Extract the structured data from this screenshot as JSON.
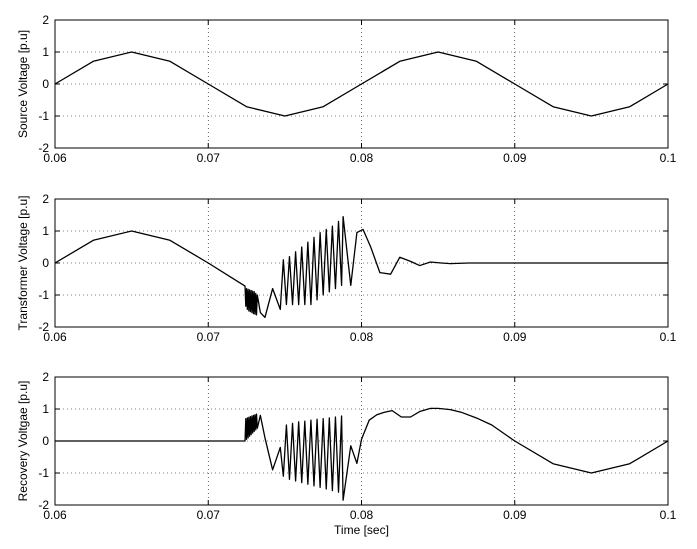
{
  "chart_data": [
    {
      "type": "line",
      "xlim": [
        0.06,
        0.1
      ],
      "ylim": [
        -2,
        2
      ],
      "xticks": [
        "0.06",
        "0.07",
        "0.08",
        "0.09",
        "0.1"
      ],
      "yticks": [
        "-2",
        "-1",
        "0",
        "1",
        "2"
      ],
      "xlabel": "",
      "ylabel": "Source Voltage [p.u]",
      "grid": true,
      "series": [
        {
          "x": [
            0.06,
            0.0625,
            0.065,
            0.0675,
            0.07,
            0.0725,
            0.075,
            0.0775,
            0.08,
            0.0825,
            0.085,
            0.0875,
            0.09,
            0.0925,
            0.095,
            0.0975,
            0.1
          ],
          "y": [
            0,
            0.71,
            1,
            0.71,
            0,
            -0.71,
            -1,
            -0.71,
            0,
            0.71,
            1,
            0.71,
            0,
            -0.71,
            -1,
            -0.71,
            0
          ]
        }
      ]
    },
    {
      "type": "line",
      "xlim": [
        0.06,
        0.1
      ],
      "ylim": [
        -2,
        2
      ],
      "xticks": [
        "0.06",
        "0.07",
        "0.08",
        "0.09",
        "0.1"
      ],
      "yticks": [
        "-2",
        "-1",
        "0",
        "1",
        "2"
      ],
      "xlabel": "",
      "ylabel": "Transformer Voltage [p.u]",
      "grid": true,
      "series": [
        {
          "x": [
            0.06,
            0.0625,
            0.065,
            0.0675,
            0.07,
            0.0715,
            0.0724,
            0.07245,
            0.0725,
            0.07255,
            0.0726,
            0.07265,
            0.0727,
            0.07275,
            0.0728,
            0.07285,
            0.0729,
            0.07295,
            0.073,
            0.07305,
            0.0731,
            0.07315,
            0.0732,
            0.0734,
            0.0737,
            0.0742,
            0.0747,
            0.0749,
            0.0751,
            0.0753,
            0.0755,
            0.0757,
            0.0759,
            0.0761,
            0.0763,
            0.0765,
            0.0767,
            0.0769,
            0.0771,
            0.0773,
            0.0775,
            0.0777,
            0.0779,
            0.0781,
            0.0783,
            0.0785,
            0.0787,
            0.0788,
            0.0793,
            0.0797,
            0.0801,
            0.0806,
            0.0812,
            0.0819,
            0.0825,
            0.0832,
            0.0838,
            0.0845,
            0.0852,
            0.0858,
            0.087,
            0.09,
            0.095,
            0.1
          ],
          "y": [
            0,
            0.71,
            1,
            0.71,
            0,
            -0.45,
            -0.72,
            -1.35,
            -0.8,
            -1.45,
            -0.82,
            -1.5,
            -0.84,
            -1.52,
            -0.86,
            -1.55,
            -0.88,
            -1.58,
            -0.9,
            -1.6,
            -0.95,
            -1.62,
            -1.0,
            -1.55,
            -1.7,
            -0.8,
            -1.45,
            0.1,
            -1.3,
            0.2,
            -1.3,
            0.35,
            -1.3,
            0.5,
            -1.3,
            0.65,
            -1.3,
            0.8,
            -1.15,
            0.95,
            -1.0,
            1.05,
            -0.9,
            1.15,
            -0.8,
            1.3,
            -0.7,
            1.45,
            -0.7,
            0.95,
            1.05,
            0.5,
            -0.3,
            -0.35,
            0.18,
            0.05,
            -0.08,
            0.03,
            0.0,
            -0.02,
            0.0,
            0.0,
            0.0,
            0.0
          ]
        }
      ]
    },
    {
      "type": "line",
      "xlim": [
        0.06,
        0.1
      ],
      "ylim": [
        -2,
        2
      ],
      "xticks": [
        "0.06",
        "0.07",
        "0.08",
        "0.09",
        "0.1"
      ],
      "yticks": [
        "-2",
        "-1",
        "0",
        "1",
        "2"
      ],
      "xlabel": "Time [sec]",
      "ylabel": "Recovery Voltgae [p.u]",
      "grid": true,
      "series": [
        {
          "x": [
            0.06,
            0.0724,
            0.07245,
            0.0725,
            0.07255,
            0.0726,
            0.07265,
            0.0727,
            0.07275,
            0.0728,
            0.07285,
            0.0729,
            0.07295,
            0.073,
            0.07305,
            0.0731,
            0.07315,
            0.0732,
            0.0734,
            0.0737,
            0.0742,
            0.0747,
            0.0749,
            0.0751,
            0.0753,
            0.0755,
            0.0757,
            0.0759,
            0.0761,
            0.0763,
            0.0765,
            0.0767,
            0.0769,
            0.0771,
            0.0773,
            0.0775,
            0.0777,
            0.0779,
            0.0781,
            0.0783,
            0.0785,
            0.0787,
            0.0788,
            0.0793,
            0.0797,
            0.08,
            0.0805,
            0.081,
            0.0815,
            0.082,
            0.0826,
            0.0832,
            0.0838,
            0.0845,
            0.085,
            0.0858,
            0.0865,
            0.0875,
            0.0885,
            0.09,
            0.0925,
            0.095,
            0.0975,
            0.1
          ],
          "y": [
            0,
            0,
            0.7,
            0.05,
            0.72,
            0.1,
            0.74,
            0.15,
            0.76,
            0.2,
            0.78,
            0.25,
            0.8,
            0.3,
            0.82,
            0.35,
            0.84,
            0.4,
            0.8,
            0.1,
            -0.9,
            -0.2,
            -1.1,
            0.5,
            -1.2,
            0.55,
            -1.25,
            0.6,
            -1.3,
            0.62,
            -1.35,
            0.65,
            -1.4,
            0.68,
            -1.45,
            0.7,
            -1.5,
            0.72,
            -1.55,
            0.75,
            -1.6,
            0.78,
            -1.85,
            -0.15,
            -0.7,
            0.05,
            0.65,
            0.82,
            0.9,
            0.95,
            0.75,
            0.75,
            0.92,
            1.02,
            1.02,
            0.98,
            0.9,
            0.72,
            0.5,
            0.0,
            -0.71,
            -1.0,
            -0.71,
            0.0
          ]
        }
      ]
    }
  ]
}
